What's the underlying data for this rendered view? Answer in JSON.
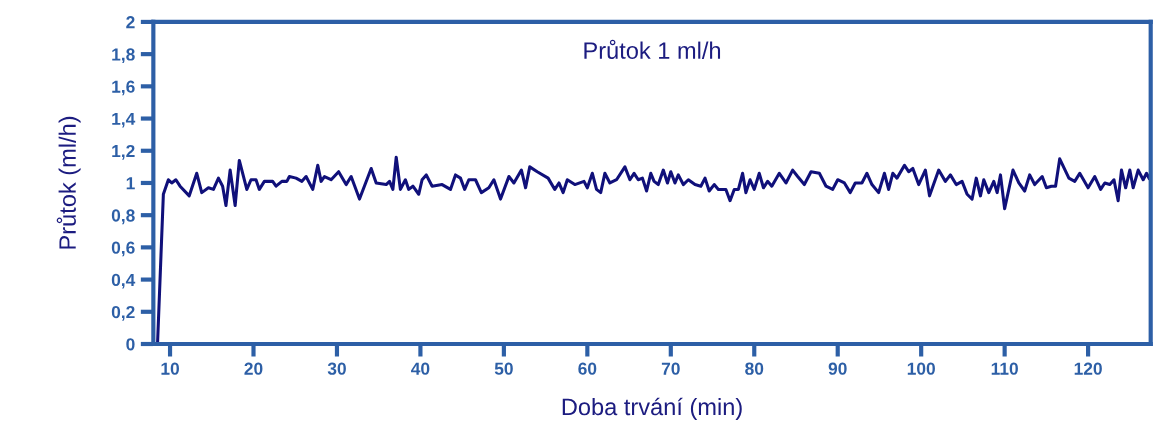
{
  "chart_data": {
    "type": "line",
    "title": "Průtok 1 ml/h",
    "xlabel": "Doba trvání (min)",
    "ylabel": "Průtok (ml/h)",
    "xlim": [
      8,
      127.5
    ],
    "xticks": [
      10,
      20,
      30,
      40,
      50,
      60,
      70,
      80,
      90,
      100,
      110,
      120
    ],
    "ylim": [
      0,
      2
    ],
    "yticks": [
      0,
      {
        "value": 0.2,
        "label": "0,2"
      },
      {
        "value": 0.4,
        "label": "0,4"
      },
      {
        "value": 0.6,
        "label": "0,6"
      },
      {
        "value": 0.8,
        "label": "0,8"
      },
      1,
      {
        "value": 1.2,
        "label": "1,2"
      },
      {
        "value": 1.4,
        "label": "1,4"
      },
      {
        "value": 1.6,
        "label": "1,6"
      },
      {
        "value": 1.8,
        "label": "1,8"
      },
      2
    ],
    "grid": false,
    "marker": "none",
    "line_style": "solid",
    "series": [
      {
        "color": "#10107a",
        "x": [
          8.5,
          9.2,
          9.8,
          10.2,
          10.7,
          11.2,
          12.3,
          13.2,
          13.8,
          14.6,
          15.2,
          15.8,
          16.3,
          16.7,
          17.2,
          17.8,
          18.3,
          19.2,
          19.7,
          20.3,
          20.7,
          21.3,
          22.3,
          22.7,
          23.4,
          24.0,
          24.3,
          25.1,
          25.8,
          26.3,
          27.1,
          27.7,
          28.1,
          28.5,
          29.3,
          30.2,
          31.1,
          31.7,
          32.7,
          34.1,
          34.7,
          35.9,
          36.3,
          36.7,
          37.1,
          37.6,
          38.2,
          38.6,
          39.1,
          39.8,
          40.2,
          40.7,
          41.4,
          42.6,
          43.6,
          44.2,
          44.8,
          45.3,
          45.8,
          46.6,
          47.3,
          48.2,
          48.8,
          49.6,
          50.6,
          51.2,
          52.1,
          52.6,
          53.1,
          54.0,
          55.3,
          56.1,
          56.6,
          57.1,
          57.6,
          58.5,
          59.6,
          60.0,
          60.6,
          61.1,
          61.6,
          62.1,
          62.7,
          63.5,
          64.5,
          65.1,
          65.6,
          66.1,
          66.6,
          67.1,
          67.6,
          68.0,
          68.5,
          69.1,
          69.6,
          70.0,
          70.5,
          70.9,
          71.5,
          72.1,
          72.9,
          73.6,
          74.1,
          74.6,
          75.2,
          75.7,
          76.6,
          77.1,
          77.6,
          78.1,
          78.6,
          79.0,
          79.5,
          80.0,
          80.6,
          81.1,
          81.6,
          82.1,
          83.0,
          83.8,
          84.6,
          85.2,
          86.0,
          86.8,
          87.8,
          88.6,
          89.4,
          90.0,
          90.8,
          91.5,
          92.1,
          92.9,
          93.5,
          94.1,
          94.9,
          95.6,
          96.1,
          96.6,
          97.1,
          98.0,
          98.5,
          99.0,
          99.7,
          100.5,
          101.0,
          102.1,
          102.9,
          103.5,
          104.2,
          104.9,
          105.5,
          106.1,
          106.6,
          107.1,
          107.5,
          108.1,
          108.7,
          109.1,
          109.5,
          110.0,
          111.0,
          111.7,
          112.4,
          113.0,
          113.6,
          114.5,
          115.0,
          115.6,
          116.1,
          116.6,
          117.7,
          118.4,
          119.0,
          120.0,
          120.8,
          121.5,
          122.0,
          122.6,
          123.1,
          123.6,
          124.0,
          124.5,
          125.0,
          125.4,
          126.0,
          126.6,
          127.0,
          127.3
        ],
        "values": [
          0,
          0.93,
          1.02,
          1.0,
          1.02,
          0.98,
          0.92,
          1.06,
          0.94,
          0.97,
          0.96,
          1.03,
          0.98,
          0.86,
          1.08,
          0.86,
          1.14,
          0.96,
          1.02,
          1.02,
          0.96,
          1.01,
          1.01,
          0.98,
          1.01,
          1.01,
          1.04,
          1.03,
          1.01,
          1.04,
          0.96,
          1.11,
          1.01,
          1.04,
          1.02,
          1.07,
          0.99,
          1.04,
          0.9,
          1.09,
          1.0,
          0.99,
          1.01,
          0.96,
          1.16,
          0.96,
          1.02,
          0.96,
          0.98,
          0.93,
          1.02,
          1.05,
          0.98,
          0.99,
          0.96,
          1.05,
          1.03,
          0.96,
          1.02,
          1.02,
          0.94,
          0.97,
          1.02,
          0.9,
          1.04,
          1.0,
          1.08,
          0.97,
          1.1,
          1.07,
          1.03,
          0.96,
          1.0,
          0.94,
          1.02,
          0.99,
          1.01,
          0.97,
          1.06,
          0.96,
          0.94,
          1.06,
          1.0,
          1.02,
          1.1,
          1.02,
          1.06,
          1.02,
          1.03,
          0.95,
          1.06,
          1.01,
          0.99,
          1.08,
          1.0,
          1.07,
          1.0,
          1.05,
          0.99,
          1.02,
          0.99,
          0.98,
          1.03,
          0.95,
          0.99,
          0.96,
          0.96,
          0.89,
          0.96,
          0.96,
          1.06,
          0.94,
          1.02,
          0.96,
          1.06,
          0.97,
          1.01,
          0.98,
          1.06,
          1.0,
          1.08,
          1.04,
          0.99,
          1.07,
          1.06,
          0.98,
          0.96,
          1.02,
          1.0,
          0.94,
          1.0,
          1.0,
          1.06,
          0.99,
          0.94,
          1.06,
          0.96,
          1.06,
          1.03,
          1.11,
          1.07,
          1.09,
          0.99,
          1.08,
          0.92,
          1.08,
          1.01,
          1.05,
          0.99,
          1.01,
          0.93,
          0.9,
          1.03,
          0.92,
          1.02,
          0.94,
          1.01,
          0.94,
          1.05,
          0.84,
          1.08,
          1.0,
          0.95,
          1.05,
          0.99,
          1.04,
          0.97,
          0.98,
          0.98,
          1.15,
          1.03,
          1.01,
          1.06,
          0.97,
          1.04,
          0.96,
          1.0,
          0.99,
          1.02,
          0.89,
          1.08,
          0.97,
          1.08,
          0.97,
          1.08,
          1.02,
          1.06,
          1.03
        ]
      }
    ]
  }
}
